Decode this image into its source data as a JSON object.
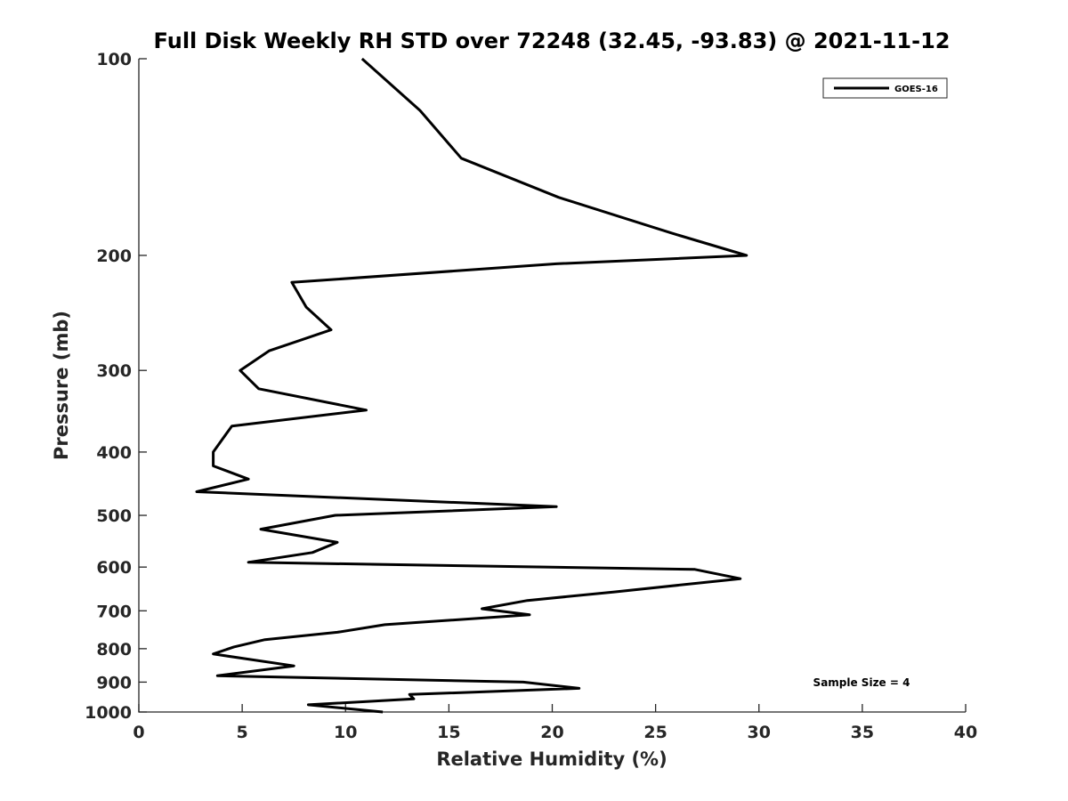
{
  "chart_data": {
    "type": "line",
    "title": "Full Disk Weekly RH STD over 72248 (32.45, -93.83) @ 2021-11-12",
    "xlabel": "Relative Humidity (%)",
    "ylabel": "Pressure (mb)",
    "xlim": [
      0,
      40
    ],
    "ylim": [
      100,
      1000
    ],
    "yscale": "log",
    "y_reversed": true,
    "grid": false,
    "legend_position": "top-right",
    "x_ticks": [
      "0",
      "5",
      "10",
      "15",
      "20",
      "25",
      "30",
      "35",
      "40"
    ],
    "y_ticks": [
      "100",
      "200",
      "300",
      "400",
      "500",
      "600",
      "700",
      "800",
      "900",
      "1000"
    ],
    "annotation": "Sample Size = 4",
    "series": [
      {
        "name": "GOES-16",
        "color": "#000000",
        "x": [
          10.8,
          13.6,
          15.6,
          20.3,
          25.8,
          29.4,
          20.2,
          7.4,
          8.1,
          9.3,
          6.3,
          4.9,
          5.8,
          11.0,
          4.5,
          3.6,
          3.6,
          5.3,
          2.8,
          20.2,
          9.5,
          5.9,
          9.6,
          8.4,
          5.3,
          26.9,
          29.1,
          23.0,
          18.8,
          16.6,
          18.9,
          11.9,
          9.6,
          6.1,
          4.6,
          3.6,
          7.5,
          3.8,
          18.6,
          21.3,
          13.1,
          13.3,
          8.2,
          11.8
        ],
        "y": [
          100,
          120,
          142,
          163,
          185,
          200,
          206,
          220,
          240,
          260,
          280,
          300,
          320,
          345,
          365,
          400,
          420,
          440,
          460,
          485,
          500,
          525,
          550,
          570,
          590,
          605,
          625,
          655,
          675,
          695,
          710,
          735,
          755,
          775,
          795,
          815,
          850,
          880,
          900,
          920,
          940,
          955,
          975,
          1000
        ]
      }
    ]
  }
}
